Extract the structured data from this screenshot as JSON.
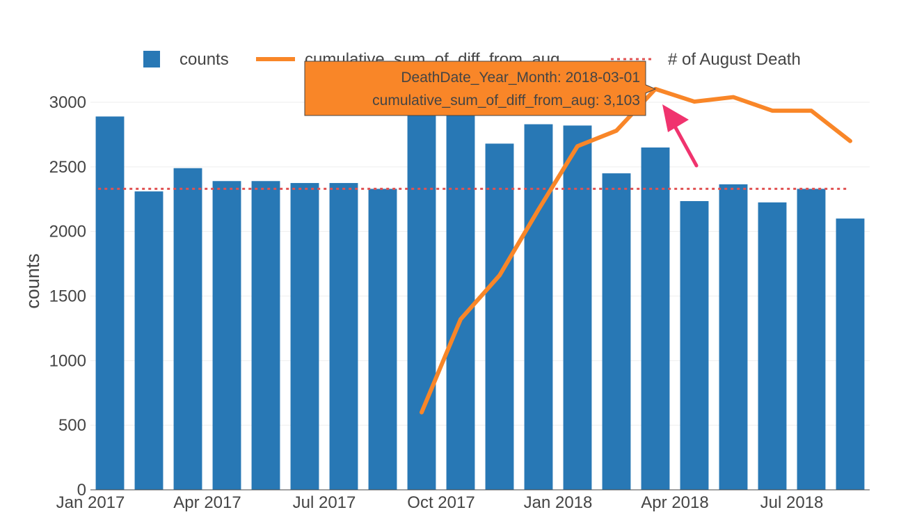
{
  "chart_data": {
    "type": "bar",
    "x": [
      "2017-01-01",
      "2017-02-01",
      "2017-03-01",
      "2017-04-01",
      "2017-05-01",
      "2017-06-01",
      "2017-07-01",
      "2017-08-01",
      "2017-09-01",
      "2017-10-01",
      "2017-11-01",
      "2017-12-01",
      "2018-01-01",
      "2018-02-01",
      "2018-03-01",
      "2018-04-01",
      "2018-05-01",
      "2018-06-01",
      "2018-07-01",
      "2018-08-01"
    ],
    "series": [
      {
        "name": "counts",
        "type": "bar",
        "color": "#2878b5",
        "values": [
          2890,
          2310,
          2490,
          2390,
          2390,
          2375,
          2375,
          2330,
          2950,
          2950,
          2680,
          2830,
          2820,
          2450,
          2650,
          2235,
          2365,
          2225,
          2330,
          2100
        ]
      },
      {
        "name": "cumulative_sum_of_diff_from_aug",
        "type": "line",
        "color": "#f98628",
        "x": [
          "2017-09-01",
          "2017-10-01",
          "2017-11-01",
          "2017-12-01",
          "2018-01-01",
          "2018-02-01",
          "2018-03-01",
          "2018-04-01",
          "2018-05-01",
          "2018-06-01",
          "2018-07-01",
          "2018-08-01"
        ],
        "values": [
          600,
          1320,
          1660,
          2170,
          2660,
          2780,
          3103,
          3005,
          3040,
          2935,
          2935,
          2700
        ]
      },
      {
        "name": "# of August Death",
        "type": "hline",
        "color": "#e05252",
        "value": 2330
      }
    ],
    "ylabel": "counts",
    "ylim": [
      0,
      3000
    ],
    "yticks": [
      0,
      500,
      1000,
      1500,
      2000,
      2500,
      3000
    ],
    "xticks": [
      {
        "x": "2017-01-01",
        "label": "Jan 2017"
      },
      {
        "x": "2017-04-01",
        "label": "Apr 2017"
      },
      {
        "x": "2017-07-01",
        "label": "Jul 2017"
      },
      {
        "x": "2017-10-01",
        "label": "Oct 2017"
      },
      {
        "x": "2018-01-01",
        "label": "Jan 2018"
      },
      {
        "x": "2018-04-01",
        "label": "Apr 2018"
      },
      {
        "x": "2018-07-01",
        "label": "Jul 2018"
      }
    ],
    "legend_position": "top",
    "grid": true,
    "tooltip": {
      "x": "2018-03-01",
      "line1": "DeathDate_Year_Month: 2018-03-01",
      "line2": "cumulative_sum_of_diff_from_aug: 3,103",
      "background": "#f98628"
    },
    "annotation_arrow_color": "#f0336e"
  }
}
